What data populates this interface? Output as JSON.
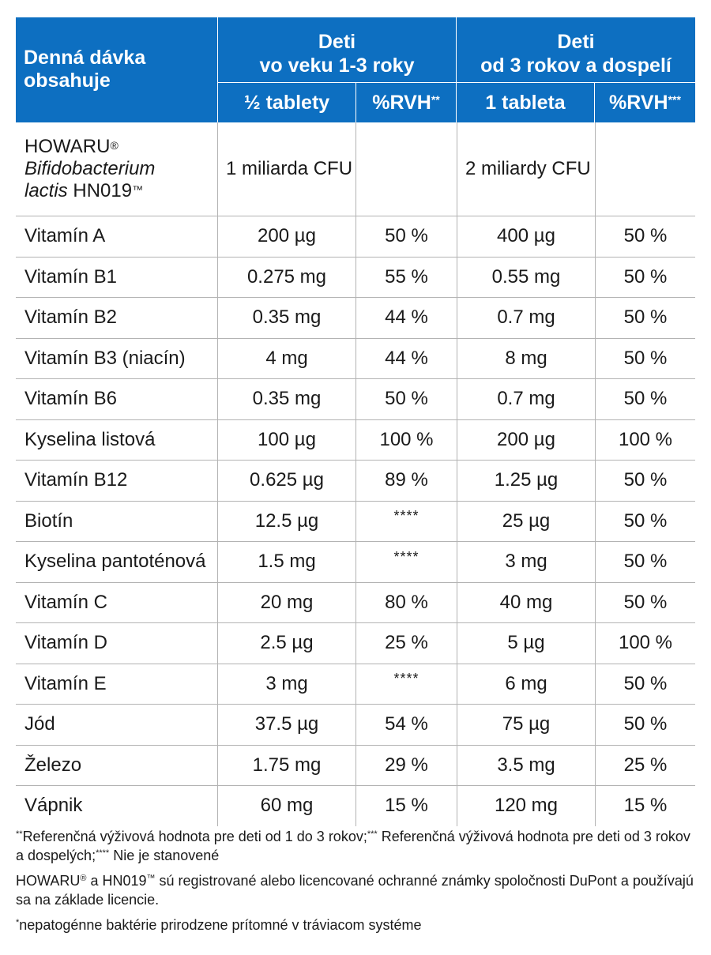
{
  "header": {
    "main_label": "Denná dávka obsahuje",
    "group1": {
      "line1": "Deti",
      "line2": "vo veku 1-3 roky"
    },
    "group2": {
      "line1": "Deti",
      "line2": "od 3 rokov a dospelí"
    },
    "sub1": "½ tablety",
    "sub2": "%RVH",
    "sub2_mark": "**",
    "sub3": "1 tableta",
    "sub4": "%RVH",
    "sub4_mark": "***"
  },
  "first_row": {
    "name_line1": "HOWARU",
    "name_reg": "®",
    "name_line2": "Bifidobacterium",
    "name_line3_italic": "lactis",
    "name_line3": " HN019",
    "name_tm": "™",
    "dose_child": "1 miliarda CFU",
    "rvh_child": "",
    "dose_adult": "2 miliardy CFU",
    "rvh_adult": ""
  },
  "rows": [
    {
      "name": "Vitamín A",
      "dose_child": "200 µg",
      "rvh_child": "50 %",
      "dose_adult": "400 µg",
      "rvh_adult": "50 %"
    },
    {
      "name": "Vitamín B1",
      "dose_child": "0.275 mg",
      "rvh_child": "55 %",
      "dose_adult": "0.55 mg",
      "rvh_adult": "50 %"
    },
    {
      "name": "Vitamín B2",
      "dose_child": "0.35 mg",
      "rvh_child": "44 %",
      "dose_adult": "0.7 mg",
      "rvh_adult": "50 %"
    },
    {
      "name": "Vitamín B3 (niacín)",
      "dose_child": "4 mg",
      "rvh_child": "44 %",
      "dose_adult": "8 mg",
      "rvh_adult": "50 %"
    },
    {
      "name": "Vitamín B6",
      "dose_child": "0.35 mg",
      "rvh_child": "50 %",
      "dose_adult": "0.7 mg",
      "rvh_adult": "50 %"
    },
    {
      "name": "Kyselina listová",
      "dose_child": "100 µg",
      "rvh_child": "100 %",
      "dose_adult": "200 µg",
      "rvh_adult": "100 %"
    },
    {
      "name": "Vitamín B12",
      "dose_child": "0.625 µg",
      "rvh_child": "89 %",
      "dose_adult": "1.25 µg",
      "rvh_adult": "50 %"
    },
    {
      "name": "Biotín",
      "dose_child": "12.5 µg",
      "rvh_child": "****",
      "dose_adult": "25 µg",
      "rvh_adult": "50 %"
    },
    {
      "name": "Kyselina pantoténová",
      "dose_child": "1.5 mg",
      "rvh_child": "****",
      "dose_adult": "3 mg",
      "rvh_adult": "50 %"
    },
    {
      "name": "Vitamín C",
      "dose_child": "20 mg",
      "rvh_child": "80 %",
      "dose_adult": "40 mg",
      "rvh_adult": "50 %"
    },
    {
      "name": "Vitamín D",
      "dose_child": "2.5 µg",
      "rvh_child": "25 %",
      "dose_adult": "5 µg",
      "rvh_adult": "100 %"
    },
    {
      "name": "Vitamín E",
      "dose_child": "3 mg",
      "rvh_child": "****",
      "dose_adult": "6 mg",
      "rvh_adult": "50 %"
    },
    {
      "name": "Jód",
      "dose_child": "37.5 µg",
      "rvh_child": "54 %",
      "dose_adult": "75 µg",
      "rvh_adult": "50 %"
    },
    {
      "name": "Železo",
      "dose_child": "1.75 mg",
      "rvh_child": "29 %",
      "dose_adult": "3.5 mg",
      "rvh_adult": "25 %"
    },
    {
      "name": "Vápnik",
      "dose_child": "60 mg",
      "rvh_child": "15 %",
      "dose_adult": "120 mg",
      "rvh_adult": "15 %"
    }
  ],
  "notes": {
    "n1_mark1": "**",
    "n1_text1": "Referenčná výživová hodnota pre deti od 1 do 3 rokov;",
    "n1_mark2": "***",
    "n1_text2": " Referenčná výživová hodnota pre deti od 3 rokov a dospelých;",
    "n1_mark3": "****",
    "n1_text3": " Nie je stanovené",
    "n2_brand": "HOWARU",
    "n2_reg": "®",
    "n2_mid": " a  HN019",
    "n2_tm": "™",
    "n2_text": " sú registrované alebo licencované ochranné známky spoločnosti DuPont a používajú sa na základe licencie.",
    "n3_mark": "*",
    "n3_text": "nepatogénne baktérie prirodzene prítomné v tráviacom systéme"
  }
}
